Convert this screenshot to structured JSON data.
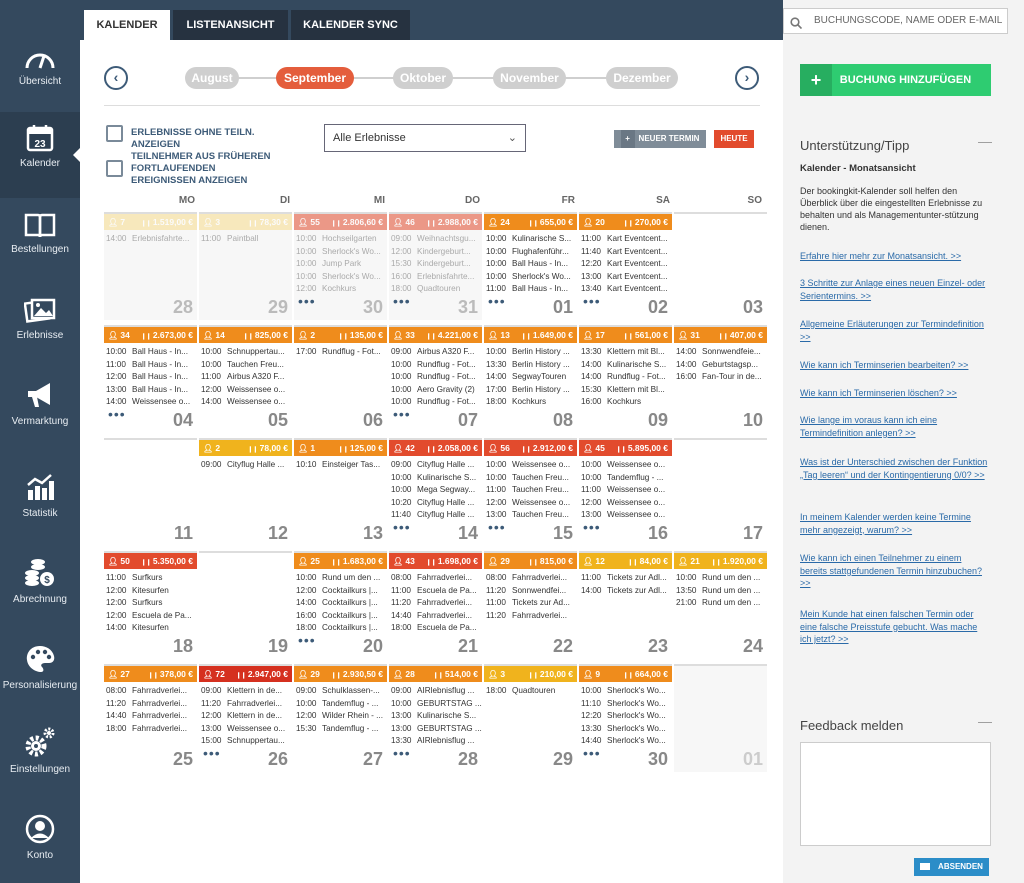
{
  "sidebar": {
    "items": [
      {
        "label": "Übersicht",
        "icon": "gauge-icon"
      },
      {
        "label": "Kalender",
        "icon": "calendar-icon",
        "day": "23"
      },
      {
        "label": "Bestellungen",
        "icon": "book-icon"
      },
      {
        "label": "Erlebnisse",
        "icon": "gallery-icon"
      },
      {
        "label": "Vermarktung",
        "icon": "megaphone-icon"
      },
      {
        "label": "Statistik",
        "icon": "chart-icon"
      },
      {
        "label": "Abrechnung",
        "icon": "coins-icon"
      },
      {
        "label": "Personalisierung",
        "icon": "palette-icon"
      },
      {
        "label": "Einstellungen",
        "icon": "gears-icon"
      },
      {
        "label": "Konto",
        "icon": "user-icon"
      }
    ]
  },
  "tabs": [
    "KALENDER",
    "LISTENANSICHT",
    "KALENDER SYNC"
  ],
  "months": [
    "August",
    "September",
    "Oktober",
    "November",
    "Dezember"
  ],
  "active_month": "September",
  "options": {
    "opt1": "ERLEBNISSE OHNE TEILN. ANZEIGEN",
    "opt2": "TEILNEHMER AUS FRÜHEREN FORTLAUFENDEN EREIGNISSEN ANZEIGEN"
  },
  "filter": "Alle Erlebnisse",
  "new_appointment": "NEUER TERMIN",
  "today": "HEUTE",
  "weekdays": [
    "MO",
    "DI",
    "MI",
    "DO",
    "FR",
    "SA",
    "SO"
  ],
  "colors": {
    "light_yellow": "#f7dc8c",
    "yellow": "#f0b31d",
    "orange": "#ef8c1c",
    "red": "#e24b2d",
    "darkred": "#d5301f",
    "sidebar": "#34495e",
    "green": "#2ecc71"
  },
  "weeks": [
    [
      {
        "day": "28",
        "other": true,
        "color": "light_yellow",
        "p": "7",
        "r": "1.519,00 €",
        "more": false,
        "ev": [
          [
            "14:00",
            "Erlebnisfahrte..."
          ]
        ]
      },
      {
        "day": "29",
        "other": true,
        "color": "light_yellow",
        "p": "3",
        "r": "78,30 €",
        "more": false,
        "ev": [
          [
            "11:00",
            "Paintball"
          ]
        ]
      },
      {
        "day": "30",
        "other": true,
        "color": "red",
        "p": "55",
        "r": "2.806,60 €",
        "more": true,
        "ev": [
          [
            "10:00",
            "Hochseilgarten"
          ],
          [
            "10:00",
            "Sherlock's Wo..."
          ],
          [
            "10:00",
            "Jump Park"
          ],
          [
            "10:00",
            "Sherlock's Wo..."
          ],
          [
            "12:00",
            "Kochkurs"
          ]
        ]
      },
      {
        "day": "31",
        "other": true,
        "color": "red",
        "p": "46",
        "r": "2.988,00 €",
        "more": true,
        "ev": [
          [
            "09:00",
            "Weihnachtsgu..."
          ],
          [
            "12:00",
            "Kindergeburt..."
          ],
          [
            "15:30",
            "Kindergeburt..."
          ],
          [
            "16:00",
            "Erlebnisfahrte..."
          ],
          [
            "18:00",
            "Quadtouren"
          ]
        ]
      },
      {
        "day": "01",
        "other": false,
        "color": "orange",
        "p": "24",
        "r": "655,00 €",
        "more": true,
        "ev": [
          [
            "10:00",
            "Kulinarische S..."
          ],
          [
            "10:00",
            "Flughafenführ..."
          ],
          [
            "10:00",
            "Ball Haus - In..."
          ],
          [
            "10:00",
            "Sherlock's Wo..."
          ],
          [
            "11:00",
            "Ball Haus - In..."
          ]
        ]
      },
      {
        "day": "02",
        "other": false,
        "color": "orange",
        "p": "20",
        "r": "270,00 €",
        "more": true,
        "ev": [
          [
            "11:00",
            "Kart Eventcent..."
          ],
          [
            "11:40",
            "Kart Eventcent..."
          ],
          [
            "12:20",
            "Kart Eventcent..."
          ],
          [
            "13:00",
            "Kart Eventcent..."
          ],
          [
            "13:40",
            "Kart Eventcent..."
          ]
        ]
      },
      {
        "day": "03",
        "other": false,
        "color": "",
        "p": "",
        "r": "",
        "more": false,
        "ev": []
      }
    ],
    [
      {
        "day": "04",
        "other": false,
        "color": "orange",
        "p": "34",
        "r": "2.673,00 €",
        "more": true,
        "ev": [
          [
            "10:00",
            "Ball Haus - In..."
          ],
          [
            "11:00",
            "Ball Haus - In..."
          ],
          [
            "12:00",
            "Ball Haus - In..."
          ],
          [
            "13:00",
            "Ball Haus - In..."
          ],
          [
            "14:00",
            "Weissensee o..."
          ]
        ]
      },
      {
        "day": "05",
        "other": false,
        "color": "orange",
        "p": "14",
        "r": "825,00 €",
        "more": false,
        "ev": [
          [
            "10:00",
            "Schnuppertau..."
          ],
          [
            "10:00",
            "Tauchen Freu..."
          ],
          [
            "11:00",
            "Airbus A320 F..."
          ],
          [
            "12:00",
            "Weissensee o..."
          ],
          [
            "14:00",
            "Weissensee o..."
          ]
        ]
      },
      {
        "day": "06",
        "other": false,
        "color": "orange",
        "p": "2",
        "r": "135,00 €",
        "more": false,
        "ev": [
          [
            "17:00",
            "Rundflug - Fot..."
          ]
        ]
      },
      {
        "day": "07",
        "other": false,
        "color": "orange",
        "p": "33",
        "r": "4.221,00 €",
        "more": true,
        "ev": [
          [
            "09:00",
            "Airbus A320 F..."
          ],
          [
            "10:00",
            "Rundflug - Fot..."
          ],
          [
            "10:00",
            "Rundflug - Fot..."
          ],
          [
            "10:00",
            "Aero Gravity (2)"
          ],
          [
            "10:00",
            "Rundflug - Fot..."
          ]
        ]
      },
      {
        "day": "08",
        "other": false,
        "color": "orange",
        "p": "13",
        "r": "1.649,00 €",
        "more": false,
        "ev": [
          [
            "10:00",
            "Berlin History ..."
          ],
          [
            "13:30",
            "Berlin History ..."
          ],
          [
            "14:00",
            "SegwayTouren"
          ],
          [
            "17:00",
            "Berlin History ..."
          ],
          [
            "18:00",
            "Kochkurs"
          ]
        ]
      },
      {
        "day": "09",
        "other": false,
        "color": "orange",
        "p": "17",
        "r": "561,00 €",
        "more": false,
        "ev": [
          [
            "13:30",
            "Klettern mit Bl..."
          ],
          [
            "14:00",
            "Kulinarische S..."
          ],
          [
            "14:00",
            "Rundflug - Fot..."
          ],
          [
            "15:30",
            "Klettern mit Bl..."
          ],
          [
            "16:00",
            "Kochkurs"
          ]
        ]
      },
      {
        "day": "10",
        "other": false,
        "color": "orange",
        "p": "31",
        "r": "407,00 €",
        "more": false,
        "ev": [
          [
            "14:00",
            "Sonnwendfeie..."
          ],
          [
            "14:00",
            "Geburtstagsp..."
          ],
          [
            "16:00",
            "Fan-Tour in de..."
          ]
        ]
      }
    ],
    [
      {
        "day": "11",
        "other": false,
        "color": "",
        "p": "",
        "r": "",
        "more": false,
        "ev": []
      },
      {
        "day": "12",
        "other": false,
        "color": "yellow",
        "p": "2",
        "r": "78,00 €",
        "more": false,
        "ev": [
          [
            "09:00",
            "Cityflug Halle ..."
          ]
        ]
      },
      {
        "day": "13",
        "other": false,
        "color": "orange",
        "p": "1",
        "r": "125,00 €",
        "more": false,
        "ev": [
          [
            "10:10",
            "Einsteiger Tas..."
          ]
        ]
      },
      {
        "day": "14",
        "other": false,
        "color": "red",
        "p": "42",
        "r": "2.058,00 €",
        "more": true,
        "ev": [
          [
            "09:00",
            "Cityflug Halle ..."
          ],
          [
            "10:00",
            "Kulinarische S..."
          ],
          [
            "10:00",
            "Mega Segway..."
          ],
          [
            "10:20",
            "Cityflug Halle ..."
          ],
          [
            "11:40",
            "Cityflug Halle ..."
          ]
        ]
      },
      {
        "day": "15",
        "other": false,
        "color": "red",
        "p": "56",
        "r": "2.912,00 €",
        "more": true,
        "ev": [
          [
            "10:00",
            "Weissensee o..."
          ],
          [
            "10:00",
            "Tauchen Freu..."
          ],
          [
            "11:00",
            "Tauchen Freu..."
          ],
          [
            "12:00",
            "Weissensee o..."
          ],
          [
            "13:00",
            "Tauchen Freu..."
          ]
        ]
      },
      {
        "day": "16",
        "other": false,
        "color": "red",
        "p": "45",
        "r": "5.895,00 €",
        "more": true,
        "ev": [
          [
            "10:00",
            "Weissensee o..."
          ],
          [
            "10:00",
            "Tandemflug - ..."
          ],
          [
            "11:00",
            "Weissensee o..."
          ],
          [
            "12:00",
            "Weissensee o..."
          ],
          [
            "13:00",
            "Weissensee o..."
          ]
        ]
      },
      {
        "day": "17",
        "other": false,
        "color": "",
        "p": "",
        "r": "",
        "more": false,
        "ev": []
      }
    ],
    [
      {
        "day": "18",
        "other": false,
        "color": "red",
        "p": "50",
        "r": "5.350,00 €",
        "more": false,
        "ev": [
          [
            "11:00",
            "Surfkurs"
          ],
          [
            "12:00",
            "Kitesurfen"
          ],
          [
            "12:00",
            "Surfkurs"
          ],
          [
            "12:00",
            "Escuela de Pa..."
          ],
          [
            "14:00",
            "Kitesurfen"
          ]
        ]
      },
      {
        "day": "19",
        "other": false,
        "color": "",
        "p": "",
        "r": "",
        "more": false,
        "ev": []
      },
      {
        "day": "20",
        "other": false,
        "color": "orange",
        "p": "25",
        "r": "1.683,00 €",
        "more": true,
        "ev": [
          [
            "10:00",
            "Rund um den ..."
          ],
          [
            "12:00",
            "Cocktailkurs |..."
          ],
          [
            "14:00",
            "Cocktailkurs |..."
          ],
          [
            "16:00",
            "Cocktailkurs |..."
          ],
          [
            "18:00",
            "Cocktailkurs |..."
          ]
        ]
      },
      {
        "day": "21",
        "other": false,
        "color": "red",
        "p": "43",
        "r": "1.698,00 €",
        "more": false,
        "ev": [
          [
            "08:00",
            "Fahrradverlei..."
          ],
          [
            "11:00",
            "Escuela de Pa..."
          ],
          [
            "11:20",
            "Fahrradverlei..."
          ],
          [
            "14:40",
            "Fahrradverlei..."
          ],
          [
            "18:00",
            "Escuela de Pa..."
          ]
        ]
      },
      {
        "day": "22",
        "other": false,
        "color": "orange",
        "p": "29",
        "r": "815,00 €",
        "more": false,
        "ev": [
          [
            "08:00",
            "Fahrradverlei..."
          ],
          [
            "11:20",
            "Sonnwendfei..."
          ],
          [
            "11:00",
            "Tickets zur Ad..."
          ],
          [
            "11:20",
            "Fahrradverlei..."
          ]
        ]
      },
      {
        "day": "23",
        "other": false,
        "color": "yellow",
        "p": "12",
        "r": "84,00 €",
        "more": false,
        "ev": [
          [
            "11:00",
            "Tickets zur Adl..."
          ],
          [
            "14:00",
            "Tickets zur Adl..."
          ]
        ]
      },
      {
        "day": "24",
        "other": false,
        "color": "yellow",
        "p": "21",
        "r": "1.920,00 €",
        "more": false,
        "ev": [
          [
            "10:00",
            "Rund um den ..."
          ],
          [
            "13:50",
            "Rund um den ..."
          ],
          [
            "21:00",
            "Rund um den ..."
          ]
        ]
      }
    ],
    [
      {
        "day": "25",
        "other": false,
        "color": "orange",
        "p": "27",
        "r": "378,00 €",
        "more": false,
        "ev": [
          [
            "08:00",
            "Fahrradverlei..."
          ],
          [
            "11:20",
            "Fahrradverlei..."
          ],
          [
            "14:40",
            "Fahrradverlei..."
          ],
          [
            "18:00",
            "Fahrradverlei..."
          ]
        ]
      },
      {
        "day": "26",
        "other": false,
        "color": "darkred",
        "p": "72",
        "r": "2.947,00 €",
        "more": true,
        "ev": [
          [
            "09:00",
            "Klettern in de..."
          ],
          [
            "11:20",
            "Fahrradverlei..."
          ],
          [
            "12:00",
            "Klettern in de..."
          ],
          [
            "13:00",
            "Weissensee o..."
          ],
          [
            "15:00",
            "Schnuppertau..."
          ]
        ]
      },
      {
        "day": "27",
        "other": false,
        "color": "orange",
        "p": "29",
        "r": "2.930,50 €",
        "more": false,
        "ev": [
          [
            "09:00",
            "Schulklassen-..."
          ],
          [
            "10:00",
            "Tandemflug - ..."
          ],
          [
            "12:00",
            "Wilder Rhein - ..."
          ],
          [
            "15:30",
            "Tandemflug - ..."
          ]
        ]
      },
      {
        "day": "28",
        "other": false,
        "color": "orange",
        "p": "28",
        "r": "514,00 €",
        "more": true,
        "ev": [
          [
            "09:00",
            "AIRlebnisflug ..."
          ],
          [
            "10:00",
            "GEBURTSTAG ..."
          ],
          [
            "13:00",
            "Kulinarische S..."
          ],
          [
            "13:00",
            "GEBURTSTAG ..."
          ],
          [
            "13:30",
            "AIRlebnisflug ..."
          ]
        ]
      },
      {
        "day": "29",
        "other": false,
        "color": "yellow",
        "p": "3",
        "r": "210,00 €",
        "more": false,
        "ev": [
          [
            "18:00",
            "Quadtouren"
          ]
        ]
      },
      {
        "day": "30",
        "other": false,
        "color": "orange",
        "p": "9",
        "r": "664,00 €",
        "more": true,
        "ev": [
          [
            "10:00",
            "Sherlock's Wo..."
          ],
          [
            "11:10",
            "Sherlock's Wo..."
          ],
          [
            "12:20",
            "Sherlock's Wo..."
          ],
          [
            "13:30",
            "Sherlock's Wo..."
          ],
          [
            "14:40",
            "Sherlock's Wo..."
          ]
        ]
      },
      {
        "day": "01",
        "other": true,
        "color": "",
        "p": "",
        "r": "",
        "more": false,
        "ev": []
      }
    ]
  ],
  "right": {
    "search_placeholder": "BUCHUNGSCODE, NAME ODER E-MAIL",
    "add_booking": "BUCHUNG HINZUFÜGEN",
    "support_title": "Unterstützung/Tipp",
    "support_subtitle": "Kalender - Monatsansicht",
    "support_text": "Der bookingkit-Kalender soll helfen den Überblick über die eingestellten Erlebnisse zu behalten und als Managementunter-stützung dienen.",
    "links": [
      "Erfahre hier mehr zur Monatsansicht. >>",
      "3 Schritte zur Anlage eines neuen Einzel- oder Serientermins. >>",
      "Allgemeine Erläuterungen zur Termindefinition >>",
      "Wie kann ich Terminserien bearbeiten? >>",
      "Wie kann ich Terminserien löschen? >>",
      "Wie lange im voraus kann ich eine Termindefinition anlegen? >>",
      "Was ist der Unterschied zwischen der Funktion „Tag leeren“ und der Kontingentierung 0/0? >>",
      "In meinem Kalender werden keine Termine mehr angezeigt, warum? >>",
      "Wie kann ich einen Teilnehmer zu einem bereits stattgefundenen Termin hinzubuchen? >>",
      "Mein Kunde hat einen falschen Termin oder eine falsche Preisstufe gebucht. Was mache ich jetzt? >>"
    ],
    "feedback_title": "Feedback melden",
    "send": "ABSENDEN"
  }
}
